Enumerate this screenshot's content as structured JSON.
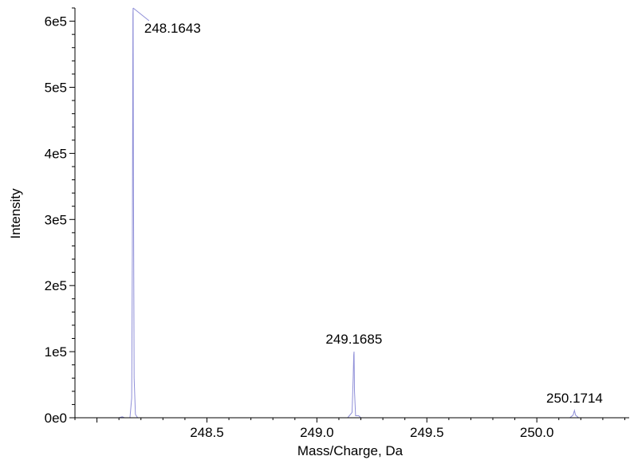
{
  "chart_data": {
    "type": "line",
    "title": "",
    "xlabel": "Mass/Charge, Da",
    "ylabel": "Intensity",
    "xlim": [
      247.9,
      250.42
    ],
    "ylim": [
      0,
      620000
    ],
    "x_ticks": [
      {
        "value": 248.5,
        "label": "248.5"
      },
      {
        "value": 249.0,
        "label": "249.0"
      },
      {
        "value": 249.5,
        "label": "249.5"
      },
      {
        "value": 250.0,
        "label": "250.0"
      }
    ],
    "y_ticks": [
      {
        "value": 0,
        "label": "0e0"
      },
      {
        "value": 100000,
        "label": "1e5"
      },
      {
        "value": 200000,
        "label": "2e5"
      },
      {
        "value": 300000,
        "label": "3e5"
      },
      {
        "value": 400000,
        "label": "4e5"
      },
      {
        "value": 500000,
        "label": "5e5"
      },
      {
        "value": 600000,
        "label": "6e5"
      }
    ],
    "line_color": "#8f8fd8",
    "grid": false,
    "series": [
      {
        "values": [
          [
            247.9,
            0
          ],
          [
            248.1,
            0
          ],
          [
            248.115,
            1500
          ],
          [
            248.125,
            0
          ],
          [
            248.15,
            0
          ],
          [
            248.158,
            30000
          ],
          [
            248.161,
            250000
          ],
          [
            248.1635,
            610000
          ],
          [
            248.1645,
            620000
          ],
          [
            248.166,
            350000
          ],
          [
            248.169,
            60000
          ],
          [
            248.175,
            5000
          ],
          [
            248.185,
            0
          ],
          [
            249.14,
            0
          ],
          [
            249.16,
            8000
          ],
          [
            249.165,
            60000
          ],
          [
            249.1675,
            95000
          ],
          [
            249.169,
            100000
          ],
          [
            249.171,
            40000
          ],
          [
            249.176,
            3000
          ],
          [
            249.19,
            3000
          ],
          [
            249.2,
            0
          ],
          [
            250.15,
            0
          ],
          [
            250.165,
            4000
          ],
          [
            250.171,
            11000
          ],
          [
            250.176,
            4000
          ],
          [
            250.19,
            0
          ],
          [
            250.42,
            0
          ]
        ]
      }
    ],
    "annotations": [
      {
        "x": 248.1643,
        "y": 620000,
        "text": "248.1643"
      },
      {
        "x": 249.1685,
        "y": 100000,
        "text": "249.1685"
      },
      {
        "x": 250.1714,
        "y": 11000,
        "text": "250.1714"
      }
    ]
  }
}
